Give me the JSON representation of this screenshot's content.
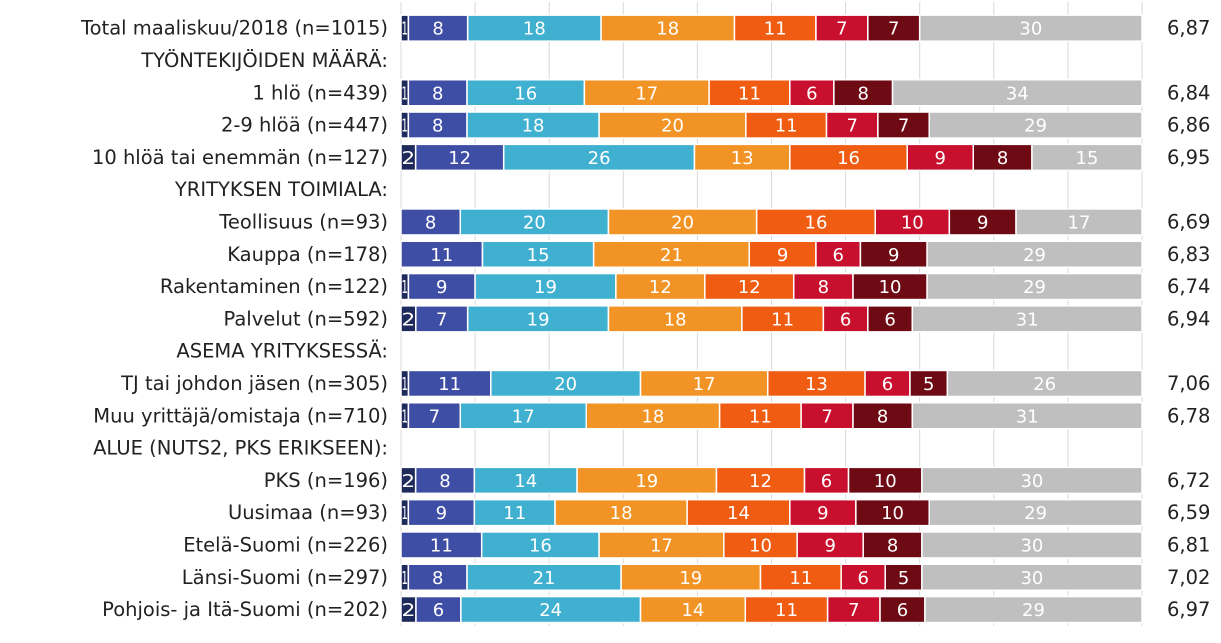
{
  "chart_data": {
    "type": "bar",
    "orientation": "horizontal",
    "stacked": true,
    "percent": true,
    "xlim": [
      0,
      100
    ],
    "grid": true,
    "legend": "none",
    "series_colors": [
      "#1f2a5c",
      "#3f4ea5",
      "#3fb0d0",
      "#f29325",
      "#ef5c12",
      "#c8102e",
      "#6e0a14",
      "#bfbfbf"
    ],
    "segment_text_colors": [
      "#ffffff",
      "#ffffff",
      "#ffffff",
      "#ffffff",
      "#ffffff",
      "#ffffff",
      "#ffffff",
      "#ffffff"
    ],
    "rows": [
      {
        "label": "Total maaliskuu/2018 (n=1015)",
        "values": [
          1,
          8,
          18,
          18,
          11,
          7,
          7,
          30
        ],
        "mean": "6,87"
      },
      {
        "label": "TYÖNTEKIJÖIDEN MÄÄRÄ:",
        "header": true
      },
      {
        "label": "1 hlö (n=439)",
        "values": [
          1,
          8,
          16,
          17,
          11,
          6,
          8,
          34
        ],
        "mean": "6,84"
      },
      {
        "label": "2-9 hlöä (n=447)",
        "values": [
          1,
          8,
          18,
          20,
          11,
          7,
          7,
          29
        ],
        "mean": "6,86"
      },
      {
        "label": "10 hlöä tai enemmän (n=127)",
        "values": [
          2,
          12,
          26,
          13,
          16,
          9,
          8,
          15
        ],
        "mean": "6,95"
      },
      {
        "label": "YRITYKSEN TOIMIALA:",
        "header": true
      },
      {
        "label": "Teollisuus (n=93)",
        "values": [
          0,
          8,
          20,
          20,
          16,
          10,
          9,
          17
        ],
        "mean": "6,69"
      },
      {
        "label": "Kauppa  (n=178)",
        "values": [
          0,
          11,
          15,
          21,
          9,
          6,
          9,
          29
        ],
        "mean": "6,83"
      },
      {
        "label": "Rakentaminen (n=122)",
        "values": [
          1,
          9,
          19,
          12,
          12,
          8,
          10,
          29
        ],
        "mean": "6,74"
      },
      {
        "label": "Palvelut  (n=592)",
        "values": [
          2,
          7,
          19,
          18,
          11,
          6,
          6,
          31
        ],
        "mean": "6,94"
      },
      {
        "label": "ASEMA YRITYKSESSÄ:",
        "header": true
      },
      {
        "label": "TJ tai johdon jäsen (n=305)",
        "values": [
          1,
          11,
          20,
          17,
          13,
          6,
          5,
          26
        ],
        "mean": "7,06"
      },
      {
        "label": "Muu yrittäjä/omistaja (n=710)",
        "values": [
          1,
          7,
          17,
          18,
          11,
          7,
          8,
          31
        ],
        "mean": "6,78"
      },
      {
        "label": "ALUE (NUTS2, PKS ERIKSEEN):",
        "header": true
      },
      {
        "label": "PKS (n=196)",
        "values": [
          2,
          8,
          14,
          19,
          12,
          6,
          10,
          30
        ],
        "mean": "6,72"
      },
      {
        "label": "Uusimaa (n=93)",
        "values": [
          1,
          9,
          11,
          18,
          14,
          9,
          10,
          29
        ],
        "mean": "6,59"
      },
      {
        "label": "Etelä-Suomi (n=226)",
        "values": [
          0,
          11,
          16,
          17,
          10,
          9,
          8,
          30
        ],
        "mean": "6,81"
      },
      {
        "label": "Länsi-Suomi (n=297)",
        "values": [
          1,
          8,
          21,
          19,
          11,
          6,
          5,
          30
        ],
        "mean": "7,02"
      },
      {
        "label": "Pohjois- ja Itä-Suomi (n=202)",
        "values": [
          2,
          6,
          24,
          14,
          11,
          7,
          6,
          29
        ],
        "mean": "6,97"
      }
    ]
  }
}
